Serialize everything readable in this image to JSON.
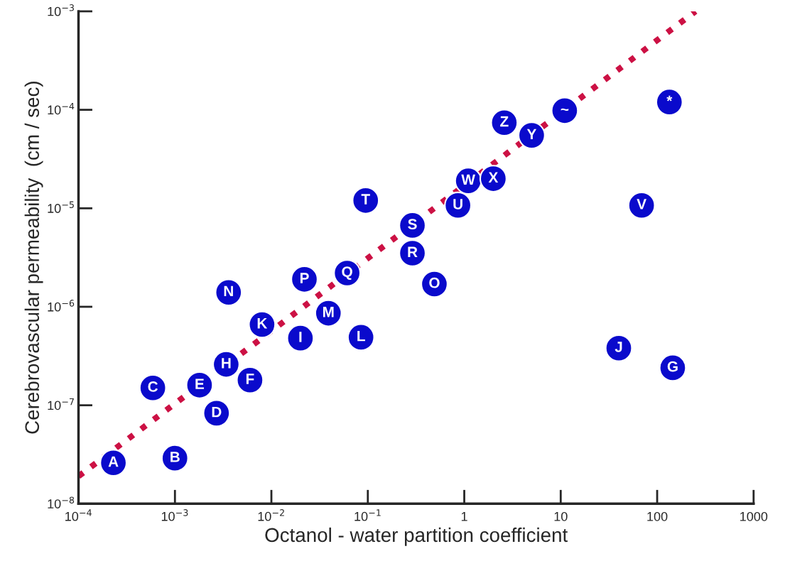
{
  "chart_data": {
    "type": "scatter",
    "xlabel": "Octanol - water partition coefficient",
    "ylabel": "Cerebrovascular permeability  (cm / sec)",
    "log": "xy",
    "grid": false,
    "legend": false,
    "xlim": [
      0.0001,
      1000
    ],
    "ylim": [
      1e-08,
      0.001
    ],
    "xticks": [
      {
        "value": 0.0001,
        "label": "10$^{−4}$"
      },
      {
        "value": 0.001,
        "label": "10$^{−3}$"
      },
      {
        "value": 0.01,
        "label": "10$^{−2}$"
      },
      {
        "value": 0.1,
        "label": "10$^{−1}$"
      },
      1,
      10,
      100,
      1000
    ],
    "yticks": [
      {
        "value": 1e-08,
        "label": "10$^{−8}$"
      },
      {
        "value": 1e-07,
        "label": "10$^{−7}$"
      },
      {
        "value": 1e-06,
        "label": "10$^{−6}$"
      },
      {
        "value": 1e-05,
        "label": "10$^{−5}$"
      },
      {
        "value": 0.0001,
        "label": "10$^{−4}$"
      },
      {
        "value": 0.001,
        "label": "10$^{−3}$"
      }
    ],
    "series": [
      {
        "type": "line",
        "color": "#cc1144",
        "line_style": "dotted",
        "x": [
          0.0001,
          250
        ],
        "values": [
          1.9e-08,
          0.001
        ]
      },
      {
        "color": "#0a0acc",
        "marker": "circle",
        "x": [
          0.00023,
          0.001,
          0.00059,
          0.0027,
          0.0018,
          0.006,
          0.0034,
          0.008,
          0.0036,
          0.02,
          0.022,
          0.039,
          0.061,
          0.085,
          0.095,
          0.29,
          0.29,
          0.49,
          0.86,
          1.1,
          2.0,
          2.6,
          5.0,
          11,
          134,
          69,
          40,
          145
        ],
        "values": [
          2.6e-08,
          2.9e-08,
          1.5e-07,
          8.3e-08,
          1.6e-07,
          1.8e-07,
          2.6e-07,
          6.6e-07,
          1.4e-06,
          4.8e-07,
          1.9e-06,
          8.6e-07,
          2.2e-06,
          4.9e-07,
          1.2e-05,
          6.7e-06,
          3.5e-06,
          1.7e-06,
          1.07e-05,
          1.9e-05,
          2e-05,
          7.4e-05,
          5.5e-05,
          9.8e-05,
          0.00012,
          1.07e-05,
          3.8e-07,
          2.4e-07
        ]
      }
    ],
    "annotations": [
      {
        "text": "A",
        "x": 0.00023,
        "y": 2.6e-08
      },
      {
        "text": "B",
        "x": 0.001,
        "y": 2.9e-08
      },
      {
        "text": "C",
        "x": 0.00059,
        "y": 1.5e-07
      },
      {
        "text": "D",
        "x": 0.0027,
        "y": 8.3e-08
      },
      {
        "text": "E",
        "x": 0.0018,
        "y": 1.6e-07
      },
      {
        "text": "F",
        "x": 0.006,
        "y": 1.8e-07
      },
      {
        "text": "H",
        "x": 0.0034,
        "y": 2.6e-07
      },
      {
        "text": "K",
        "x": 0.008,
        "y": 6.6e-07
      },
      {
        "text": "N",
        "x": 0.0036,
        "y": 1.4e-06
      },
      {
        "text": "I",
        "x": 0.02,
        "y": 4.8e-07
      },
      {
        "text": "P",
        "x": 0.022,
        "y": 1.9e-06
      },
      {
        "text": "M",
        "x": 0.039,
        "y": 8.6e-07
      },
      {
        "text": "Q",
        "x": 0.061,
        "y": 2.2e-06
      },
      {
        "text": "L",
        "x": 0.085,
        "y": 4.9e-07
      },
      {
        "text": "T",
        "x": 0.095,
        "y": 1.2e-05
      },
      {
        "text": "S",
        "x": 0.29,
        "y": 6.7e-06
      },
      {
        "text": "R",
        "x": 0.29,
        "y": 3.5e-06
      },
      {
        "text": "O",
        "x": 0.49,
        "y": 1.7e-06
      },
      {
        "text": "U",
        "x": 0.86,
        "y": 1.07e-05
      },
      {
        "text": "W",
        "x": 1.1,
        "y": 1.9e-05
      },
      {
        "text": "X",
        "x": 2.0,
        "y": 2e-05
      },
      {
        "text": "Z",
        "x": 2.6,
        "y": 7.4e-05
      },
      {
        "text": "Y",
        "x": 5.0,
        "y": 5.5e-05
      },
      {
        "text": "~",
        "x": 11,
        "y": 9.8e-05
      },
      {
        "text": "*",
        "x": 134,
        "y": 0.00012
      },
      {
        "text": "V",
        "x": 69,
        "y": 1.07e-05
      },
      {
        "text": "J",
        "x": 40,
        "y": 3.8e-07
      },
      {
        "text": "G",
        "x": 145,
        "y": 2.4e-07
      }
    ]
  }
}
